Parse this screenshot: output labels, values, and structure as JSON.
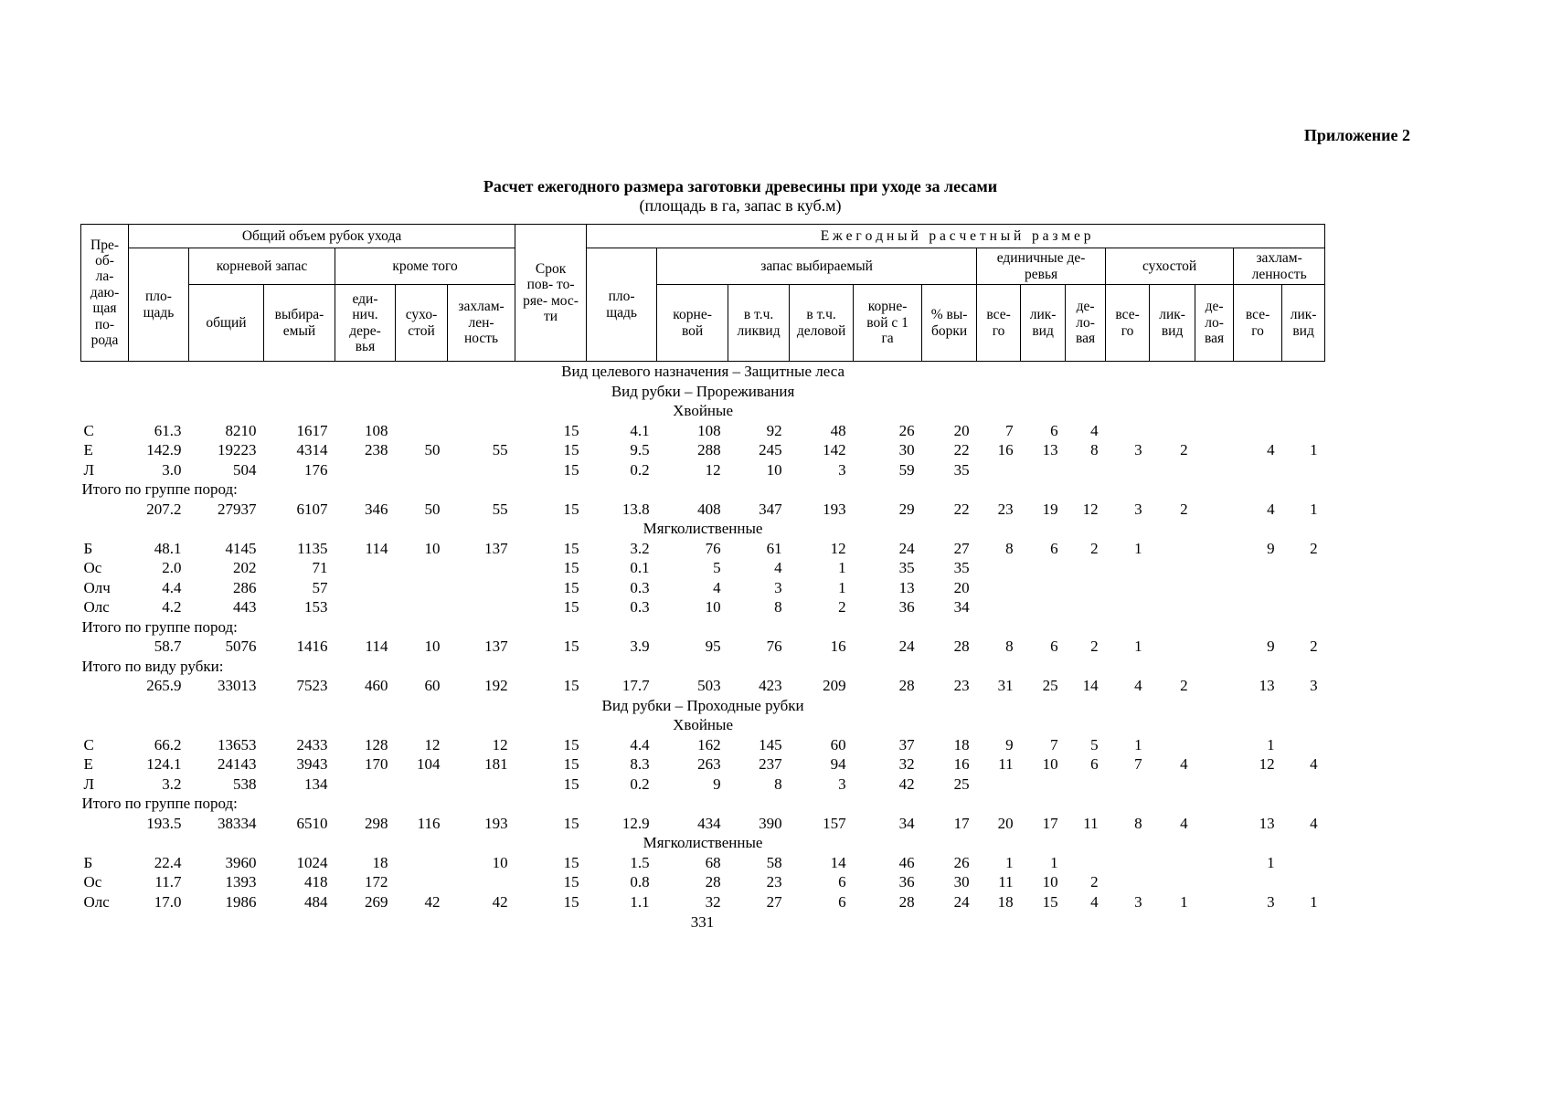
{
  "page": {
    "appendix_label": "Приложение 2",
    "title": "Расчет ежегодного размера заготовки древесины при уходе за лесами",
    "subtitle": "(площадь в га, запас в куб.м)",
    "page_number": "331"
  },
  "table": {
    "header": {
      "species": "Пре-\nоб-\nла-\nдаю-\nщая\nпо-\nрода",
      "total_volume_group": "Общий объем рубок ухода",
      "period": "Срок\nпов- то-\nряе- мос-\nти",
      "annual_group": "Е ж е г о д н ы й   р а с ч е т н ы й   р а з м е р",
      "area_left": "пло-\nщадь",
      "root_stock_group": "корневой запас",
      "besides_group": "кроме того",
      "area_right": "пло-\nщадь",
      "selected_stock_group": "запас выбираемый",
      "single_trees_group": "единичные де-\nревья",
      "dead_wood_group": "сухостой",
      "debris_group": "захлам-\nленность",
      "col_total": "общий",
      "col_selected": "выбира-\nемый",
      "col_single_trees": "еди-\nнич.\nдере-\nвья",
      "col_dead_wood": "сухо-\nстой",
      "col_debris": "захлам-\nлен-\nность",
      "col_root": "корне-\nвой",
      "col_incl_liquid": "в т.ч.\nликвид",
      "col_incl_business": "в т.ч.\nделовой",
      "col_root_per_ha": "корне-\nвой с 1\nга",
      "col_pct_selection": "% вы-\nборки",
      "col_all_1": "все-\nго",
      "col_liquid_1": "лик-\nвид",
      "col_business_1": "де-\nло-\nвая",
      "col_all_2": "все-\nго",
      "col_liquid_2": "лик-\nвид",
      "col_business_2": "де-\nло-\nвая",
      "col_all_3": "все-\nго",
      "col_liquid_3": "лик-\nвид"
    },
    "rows": [
      {
        "type": "section",
        "text": "Вид целевого назначения – Защитные леса"
      },
      {
        "type": "section",
        "text": "Вид рубки –  Прореживания"
      },
      {
        "type": "section",
        "text": "Хвойные"
      },
      {
        "type": "data",
        "cells": [
          "С",
          "61.3",
          "8210",
          "1617",
          "108",
          "",
          "",
          "15",
          "4.1",
          "108",
          "92",
          "48",
          "26",
          "20",
          "7",
          "6",
          "4",
          "",
          "",
          "",
          "",
          ""
        ]
      },
      {
        "type": "data",
        "cells": [
          "Е",
          "142.9",
          "19223",
          "4314",
          "238",
          "50",
          "55",
          "15",
          "9.5",
          "288",
          "245",
          "142",
          "30",
          "22",
          "16",
          "13",
          "8",
          "3",
          "2",
          "",
          "4",
          "1"
        ]
      },
      {
        "type": "data",
        "cells": [
          "Л",
          "3.0",
          "504",
          "176",
          "",
          "",
          "",
          "15",
          "0.2",
          "12",
          "10",
          "3",
          "59",
          "35",
          "",
          "",
          "",
          "",
          "",
          "",
          "",
          ""
        ]
      },
      {
        "type": "label",
        "text": "Итого по группе пород:"
      },
      {
        "type": "data",
        "cells": [
          "",
          "207.2",
          "27937",
          "6107",
          "346",
          "50",
          "55",
          "15",
          "13.8",
          "408",
          "347",
          "193",
          "29",
          "22",
          "23",
          "19",
          "12",
          "3",
          "2",
          "",
          "4",
          "1"
        ]
      },
      {
        "type": "section",
        "text": "Мягколиственные"
      },
      {
        "type": "data",
        "cells": [
          "Б",
          "48.1",
          "4145",
          "1135",
          "114",
          "10",
          "137",
          "15",
          "3.2",
          "76",
          "61",
          "12",
          "24",
          "27",
          "8",
          "6",
          "2",
          "1",
          "",
          "",
          "9",
          "2"
        ]
      },
      {
        "type": "data",
        "cells": [
          "Ос",
          "2.0",
          "202",
          "71",
          "",
          "",
          "",
          "15",
          "0.1",
          "5",
          "4",
          "1",
          "35",
          "35",
          "",
          "",
          "",
          "",
          "",
          "",
          "",
          ""
        ]
      },
      {
        "type": "data",
        "cells": [
          "Олч",
          "4.4",
          "286",
          "57",
          "",
          "",
          "",
          "15",
          "0.3",
          "4",
          "3",
          "1",
          "13",
          "20",
          "",
          "",
          "",
          "",
          "",
          "",
          "",
          ""
        ]
      },
      {
        "type": "data",
        "cells": [
          "Олс",
          "4.2",
          "443",
          "153",
          "",
          "",
          "",
          "15",
          "0.3",
          "10",
          "8",
          "2",
          "36",
          "34",
          "",
          "",
          "",
          "",
          "",
          "",
          "",
          ""
        ]
      },
      {
        "type": "label",
        "text": "Итого по группе пород:"
      },
      {
        "type": "data",
        "cells": [
          "",
          "58.7",
          "5076",
          "1416",
          "114",
          "10",
          "137",
          "15",
          "3.9",
          "95",
          "76",
          "16",
          "24",
          "28",
          "8",
          "6",
          "2",
          "1",
          "",
          "",
          "9",
          "2"
        ]
      },
      {
        "type": "label",
        "text": "Итого по виду рубки:"
      },
      {
        "type": "data",
        "cells": [
          "",
          "265.9",
          "33013",
          "7523",
          "460",
          "60",
          "192",
          "15",
          "17.7",
          "503",
          "423",
          "209",
          "28",
          "23",
          "31",
          "25",
          "14",
          "4",
          "2",
          "",
          "13",
          "3"
        ]
      },
      {
        "type": "section",
        "text": "Вид рубки –  Проходные рубки"
      },
      {
        "type": "section",
        "text": "Хвойные"
      },
      {
        "type": "data",
        "cells": [
          "С",
          "66.2",
          "13653",
          "2433",
          "128",
          "12",
          "12",
          "15",
          "4.4",
          "162",
          "145",
          "60",
          "37",
          "18",
          "9",
          "7",
          "5",
          "1",
          "",
          "",
          "1",
          ""
        ]
      },
      {
        "type": "data",
        "cells": [
          "Е",
          "124.1",
          "24143",
          "3943",
          "170",
          "104",
          "181",
          "15",
          "8.3",
          "263",
          "237",
          "94",
          "32",
          "16",
          "11",
          "10",
          "6",
          "7",
          "4",
          "",
          "12",
          "4"
        ]
      },
      {
        "type": "data",
        "cells": [
          "Л",
          "3.2",
          "538",
          "134",
          "",
          "",
          "",
          "15",
          "0.2",
          "9",
          "8",
          "3",
          "42",
          "25",
          "",
          "",
          "",
          "",
          "",
          "",
          "",
          ""
        ]
      },
      {
        "type": "label",
        "text": "Итого по группе пород:"
      },
      {
        "type": "data",
        "cells": [
          "",
          "193.5",
          "38334",
          "6510",
          "298",
          "116",
          "193",
          "15",
          "12.9",
          "434",
          "390",
          "157",
          "34",
          "17",
          "20",
          "17",
          "11",
          "8",
          "4",
          "",
          "13",
          "4"
        ]
      },
      {
        "type": "section",
        "text": "Мягколиственные"
      },
      {
        "type": "data",
        "cells": [
          "Б",
          "22.4",
          "3960",
          "1024",
          "18",
          "",
          "10",
          "15",
          "1.5",
          "68",
          "58",
          "14",
          "46",
          "26",
          "1",
          "1",
          "",
          "",
          "",
          "",
          "1",
          ""
        ]
      },
      {
        "type": "data",
        "cells": [
          "Ос",
          "11.7",
          "1393",
          "418",
          "172",
          "",
          "",
          "15",
          "0.8",
          "28",
          "23",
          "6",
          "36",
          "30",
          "11",
          "10",
          "2",
          "",
          "",
          "",
          "",
          ""
        ]
      },
      {
        "type": "data",
        "cells": [
          "Олс",
          "17.0",
          "1986",
          "484",
          "269",
          "42",
          "42",
          "15",
          "1.1",
          "32",
          "27",
          "6",
          "28",
          "24",
          "18",
          "15",
          "4",
          "3",
          "1",
          "",
          "3",
          "1"
        ]
      }
    ]
  }
}
